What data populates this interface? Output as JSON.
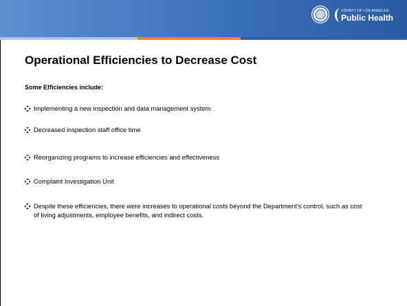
{
  "header": {
    "agency": "COUNTY OF LOS ANGELES",
    "department": "Public Health"
  },
  "title": "Operational Efficiencies to Decrease Cost",
  "subtitle": "Some Efficiencies include:",
  "bullets": [
    "Implementing a new inspection and data management system",
    "Decreased inspection staff office time",
    "Reorganizing programs to increase efficiencies and effectiveness",
    "Complaint Investigation Unit",
    "Despite these efficiencies, there were increases to operational costs beyond the Department’s control, such as cost of living adjustments, employee benefits, and indirect costs."
  ]
}
